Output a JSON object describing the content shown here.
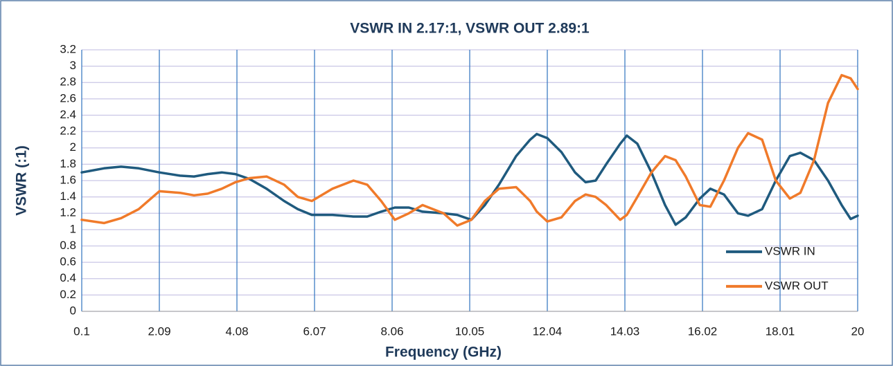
{
  "chart_data": {
    "type": "line",
    "title": "VSWR IN 2.17:1, VSWR OUT 2.89:1",
    "x_label": "Frequency (GHz)",
    "y_label": "VSWR (:1)",
    "x": [
      0.1,
      0.67,
      1.11,
      1.56,
      2.09,
      2.62,
      2.98,
      3.33,
      3.69,
      4.04,
      4.4,
      4.84,
      5.29,
      5.64,
      6.0,
      6.53,
      7.07,
      7.42,
      7.78,
      8.13,
      8.49,
      8.84,
      9.38,
      9.73,
      10.09,
      10.44,
      10.8,
      11.24,
      11.6,
      11.77,
      12.04,
      12.4,
      12.75,
      13.02,
      13.28,
      13.55,
      13.91,
      14.08,
      14.35,
      14.71,
      15.06,
      15.33,
      15.59,
      15.95,
      16.22,
      16.57,
      16.93,
      17.19,
      17.55,
      17.9,
      18.26,
      18.53,
      18.88,
      19.24,
      19.59,
      19.82,
      20
    ],
    "series": [
      {
        "name": "VSWR IN",
        "color": "#1f5a7e",
        "values": [
          1.7,
          1.75,
          1.77,
          1.75,
          1.7,
          1.66,
          1.65,
          1.68,
          1.7,
          1.68,
          1.62,
          1.5,
          1.35,
          1.25,
          1.18,
          1.18,
          1.16,
          1.16,
          1.22,
          1.27,
          1.27,
          1.22,
          1.2,
          1.18,
          1.12,
          1.3,
          1.55,
          1.9,
          2.1,
          2.17,
          2.12,
          1.95,
          1.7,
          1.58,
          1.6,
          1.8,
          2.05,
          2.15,
          2.05,
          1.7,
          1.3,
          1.06,
          1.15,
          1.38,
          1.5,
          1.43,
          1.2,
          1.17,
          1.25,
          1.6,
          1.9,
          1.94,
          1.85,
          1.6,
          1.3,
          1.13,
          1.17
        ]
      },
      {
        "name": "VSWR OUT",
        "color": "#f07a2a",
        "values": [
          1.12,
          1.08,
          1.14,
          1.25,
          1.47,
          1.45,
          1.42,
          1.44,
          1.5,
          1.58,
          1.63,
          1.65,
          1.55,
          1.4,
          1.35,
          1.5,
          1.6,
          1.55,
          1.35,
          1.12,
          1.2,
          1.3,
          1.2,
          1.05,
          1.12,
          1.35,
          1.5,
          1.52,
          1.35,
          1.22,
          1.1,
          1.15,
          1.35,
          1.43,
          1.4,
          1.3,
          1.12,
          1.18,
          1.4,
          1.7,
          1.9,
          1.85,
          1.65,
          1.3,
          1.28,
          1.6,
          2.0,
          2.18,
          2.1,
          1.6,
          1.38,
          1.45,
          1.85,
          2.55,
          2.89,
          2.85,
          2.72
        ]
      }
    ],
    "xlim": [
      0.1,
      20
    ],
    "xticks": [
      0.1,
      2.09,
      4.08,
      6.07,
      8.06,
      10.05,
      12.04,
      14.03,
      16.02,
      18.01,
      20
    ],
    "ylim": [
      0,
      3.2
    ],
    "yticks": [
      0,
      0.2,
      0.4,
      0.6,
      0.8,
      1,
      1.2,
      1.4,
      1.6,
      1.8,
      2,
      2.2,
      2.4,
      2.6,
      2.8,
      3,
      3.2
    ],
    "grid": true,
    "legend": "lower right"
  }
}
